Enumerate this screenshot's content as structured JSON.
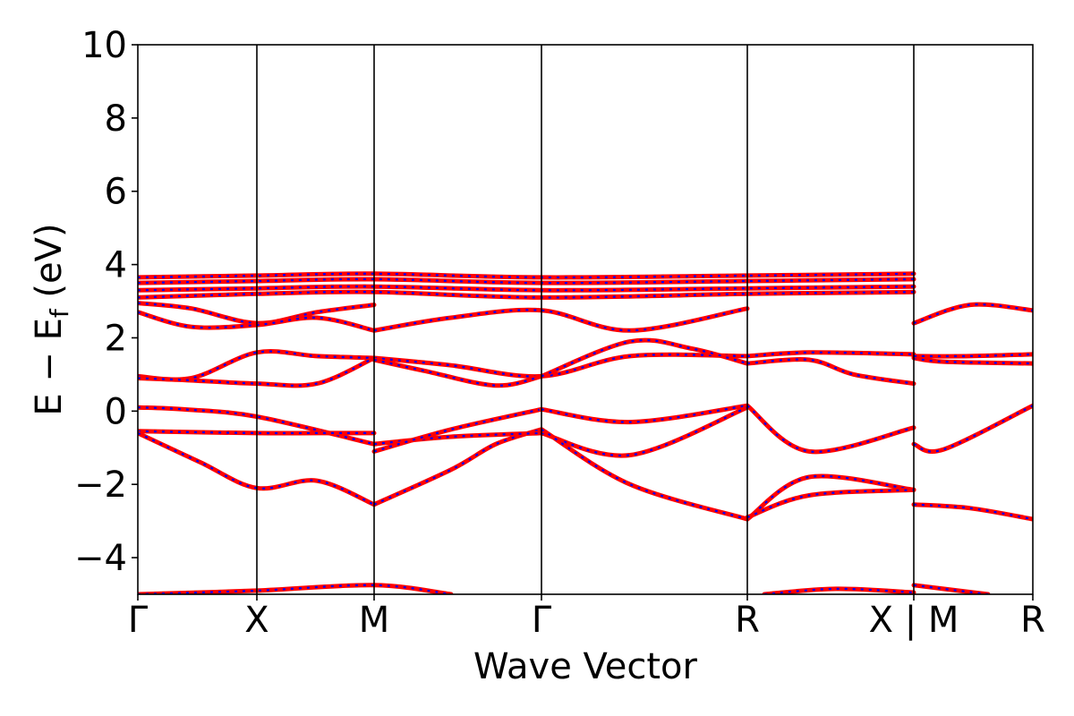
{
  "chart_data": {
    "type": "line",
    "title": "",
    "xlabel": "Wave Vector",
    "ylabel": "E − E_f (eV)",
    "ylabel_parts": {
      "main": "E − E",
      "sub": "f",
      "unit": " (eV)"
    },
    "xlim": [
      0,
      1
    ],
    "ylim": [
      -5,
      10
    ],
    "yticks": [
      -4,
      -2,
      0,
      2,
      4,
      6,
      8,
      10
    ],
    "ytick_labels": [
      "−4",
      "−2",
      "0",
      "2",
      "4",
      "6",
      "8",
      "10"
    ],
    "grid": false,
    "kpoints": [
      {
        "label": "Γ",
        "x": 0.0
      },
      {
        "label": "X",
        "x": 0.133
      },
      {
        "label": "M",
        "x": 0.264
      },
      {
        "label": "Γ",
        "x": 0.451
      },
      {
        "label": "R",
        "x": 0.681
      },
      {
        "label": "X | M",
        "x": 0.867
      },
      {
        "label": "R",
        "x": 1.0
      }
    ],
    "series": [
      {
        "style": {
          "color": "#ff0000",
          "dash": "solid"
        },
        "values": [
          {
            "x": [
              0.0,
              0.133,
              0.264,
              0.451,
              0.681,
              0.867
            ],
            "y": [
              3.65,
              3.7,
              3.75,
              3.65,
              3.7,
              3.75
            ]
          },
          {
            "x": [
              0.0,
              0.133,
              0.264,
              0.451,
              0.681,
              0.867
            ],
            "y": [
              3.5,
              3.55,
              3.6,
              3.5,
              3.55,
              3.6
            ]
          },
          {
            "x": [
              0.0,
              0.133,
              0.264,
              0.451,
              0.681,
              0.867
            ],
            "y": [
              3.3,
              3.35,
              3.4,
              3.3,
              3.35,
              3.4
            ]
          },
          {
            "x": [
              0.0,
              0.133,
              0.264,
              0.451,
              0.681,
              0.867
            ],
            "y": [
              3.1,
              3.2,
              3.25,
              3.1,
              3.2,
              3.25
            ]
          },
          {
            "x": [
              0.0,
              0.06,
              0.133,
              0.2,
              0.264
            ],
            "y": [
              2.95,
              2.8,
              2.4,
              2.7,
              2.9
            ]
          },
          {
            "x": [
              0.0,
              0.06,
              0.133,
              0.2,
              0.264
            ],
            "y": [
              2.7,
              2.3,
              2.35,
              2.55,
              2.2
            ]
          },
          {
            "x": [
              0.264,
              0.35,
              0.451,
              0.55,
              0.681
            ],
            "y": [
              2.2,
              2.55,
              2.75,
              2.2,
              2.8
            ]
          },
          {
            "x": [
              0.0,
              0.06,
              0.133,
              0.2,
              0.264
            ],
            "y": [
              0.95,
              0.9,
              1.6,
              1.5,
              1.45
            ]
          },
          {
            "x": [
              0.0,
              0.05,
              0.133,
              0.2,
              0.264
            ],
            "y": [
              0.9,
              0.85,
              0.75,
              0.75,
              1.45
            ]
          },
          {
            "x": [
              0.264,
              0.35,
              0.451,
              0.55,
              0.681
            ],
            "y": [
              1.45,
              1.25,
              0.95,
              1.5,
              1.5
            ]
          },
          {
            "x": [
              0.264,
              0.32,
              0.4,
              0.451
            ],
            "y": [
              1.4,
              1.1,
              0.7,
              0.95
            ]
          },
          {
            "x": [
              0.451,
              0.55,
              0.62,
              0.681
            ],
            "y": [
              0.95,
              1.9,
              1.7,
              1.3
            ]
          },
          {
            "x": [
              0.681,
              0.75,
              0.867
            ],
            "y": [
              1.5,
              1.6,
              1.55
            ]
          },
          {
            "x": [
              0.681,
              0.75,
              0.8,
              0.867
            ],
            "y": [
              1.3,
              1.4,
              1.0,
              0.75
            ]
          },
          {
            "x": [
              0.867,
              0.9,
              1.0
            ],
            "y": [
              1.45,
              1.35,
              1.3
            ]
          },
          {
            "x": [
              0.867,
              0.93,
              1.0
            ],
            "y": [
              1.5,
              1.5,
              1.55
            ]
          },
          {
            "x": [
              0.867,
              0.93,
              1.0
            ],
            "y": [
              2.4,
              2.9,
              2.75
            ]
          },
          {
            "x": [
              0.0,
              0.05,
              0.133,
              0.264
            ],
            "y": [
              0.1,
              0.05,
              -0.15,
              -0.9
            ]
          },
          {
            "x": [
              0.0,
              0.133,
              0.2,
              0.264
            ],
            "y": [
              -0.55,
              -0.6,
              -0.6,
              -0.6
            ]
          },
          {
            "x": [
              0.0,
              0.07,
              0.133,
              0.2,
              0.264
            ],
            "y": [
              -0.6,
              -1.4,
              -2.1,
              -1.9,
              -2.55
            ]
          },
          {
            "x": [
              0.264,
              0.35,
              0.4,
              0.451
            ],
            "y": [
              -2.55,
              -1.6,
              -0.9,
              -0.5
            ]
          },
          {
            "x": [
              0.264,
              0.35,
              0.451
            ],
            "y": [
              -0.9,
              -0.7,
              -0.6
            ]
          },
          {
            "x": [
              0.264,
              0.35,
              0.451
            ],
            "y": [
              -1.1,
              -0.5,
              0.05
            ]
          },
          {
            "x": [
              0.451,
              0.55,
              0.681
            ],
            "y": [
              0.05,
              -0.3,
              0.15
            ]
          },
          {
            "x": [
              0.451,
              0.55,
              0.681
            ],
            "y": [
              -0.6,
              -1.2,
              0.1
            ]
          },
          {
            "x": [
              0.451,
              0.55,
              0.681
            ],
            "y": [
              -0.5,
              -2.0,
              -2.95
            ]
          },
          {
            "x": [
              0.681,
              0.75,
              0.867
            ],
            "y": [
              0.15,
              -1.1,
              -0.45
            ]
          },
          {
            "x": [
              0.681,
              0.75,
              0.867
            ],
            "y": [
              -2.95,
              -1.8,
              -2.15
            ]
          },
          {
            "x": [
              0.681,
              0.75,
              0.867
            ],
            "y": [
              -2.9,
              -2.3,
              -2.15
            ]
          },
          {
            "x": [
              0.867,
              0.9,
              1.0
            ],
            "y": [
              -0.9,
              -1.05,
              0.15
            ]
          },
          {
            "x": [
              0.867,
              0.93,
              1.0
            ],
            "y": [
              -2.55,
              -2.65,
              -2.95
            ]
          },
          {
            "x": [
              0.0,
              0.133,
              0.264,
              0.35
            ],
            "y": [
              -5.0,
              -4.9,
              -4.75,
              -5.0
            ]
          },
          {
            "x": [
              0.7,
              0.78,
              0.867
            ],
            "y": [
              -5.0,
              -4.85,
              -4.95
            ]
          },
          {
            "x": [
              0.867,
              0.9,
              0.95
            ],
            "y": [
              -4.75,
              -4.85,
              -5.0
            ]
          }
        ]
      }
    ]
  }
}
